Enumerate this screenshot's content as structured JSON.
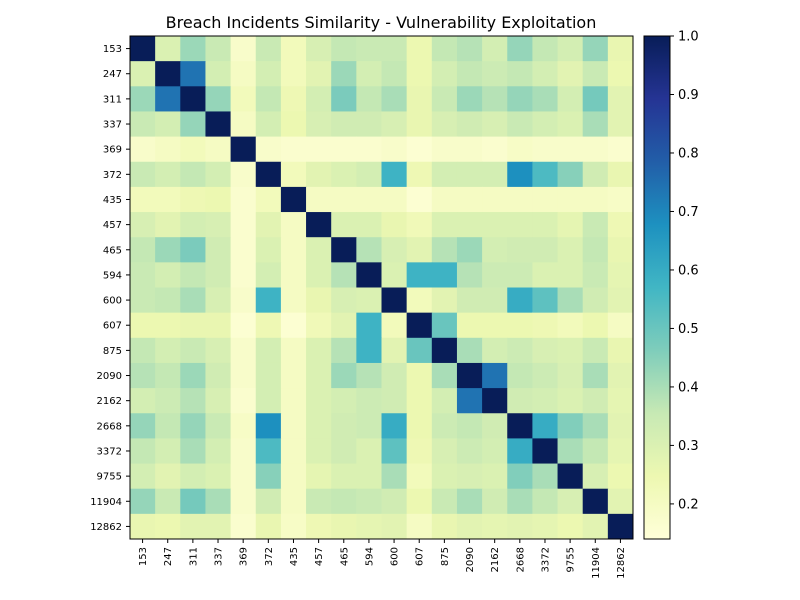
{
  "chart_data": {
    "type": "heatmap",
    "title": "Breach Incidents Similarity - Vulnerability Exploitation",
    "xlabel": "",
    "ylabel": "",
    "labels": [
      "153",
      "247",
      "311",
      "337",
      "369",
      "372",
      "435",
      "457",
      "465",
      "594",
      "600",
      "607",
      "875",
      "2090",
      "2162",
      "2668",
      "3372",
      "9755",
      "11904",
      "12862"
    ],
    "matrix": [
      [
        1.0,
        0.3,
        0.42,
        0.35,
        0.18,
        0.35,
        0.22,
        0.31,
        0.36,
        0.35,
        0.35,
        0.25,
        0.36,
        0.38,
        0.32,
        0.43,
        0.36,
        0.32,
        0.43,
        0.26
      ],
      [
        0.3,
        1.0,
        0.74,
        0.32,
        0.2,
        0.32,
        0.22,
        0.28,
        0.42,
        0.32,
        0.36,
        0.25,
        0.32,
        0.36,
        0.34,
        0.36,
        0.32,
        0.28,
        0.35,
        0.25
      ],
      [
        0.42,
        0.74,
        1.0,
        0.43,
        0.22,
        0.36,
        0.24,
        0.32,
        0.47,
        0.36,
        0.4,
        0.26,
        0.35,
        0.42,
        0.38,
        0.43,
        0.4,
        0.32,
        0.48,
        0.28
      ],
      [
        0.35,
        0.32,
        0.43,
        1.0,
        0.2,
        0.32,
        0.25,
        0.31,
        0.33,
        0.33,
        0.31,
        0.26,
        0.31,
        0.33,
        0.31,
        0.35,
        0.32,
        0.3,
        0.4,
        0.28
      ],
      [
        0.18,
        0.2,
        0.22,
        0.2,
        1.0,
        0.18,
        0.17,
        0.17,
        0.17,
        0.17,
        0.18,
        0.16,
        0.18,
        0.18,
        0.17,
        0.19,
        0.18,
        0.18,
        0.18,
        0.17
      ],
      [
        0.35,
        0.32,
        0.36,
        0.32,
        0.18,
        1.0,
        0.22,
        0.28,
        0.3,
        0.32,
        0.58,
        0.24,
        0.32,
        0.32,
        0.32,
        0.68,
        0.55,
        0.45,
        0.33,
        0.26
      ],
      [
        0.22,
        0.22,
        0.24,
        0.25,
        0.17,
        0.22,
        1.0,
        0.2,
        0.2,
        0.2,
        0.2,
        0.16,
        0.2,
        0.2,
        0.2,
        0.2,
        0.2,
        0.2,
        0.2,
        0.19
      ],
      [
        0.31,
        0.28,
        0.32,
        0.31,
        0.17,
        0.28,
        0.2,
        1.0,
        0.3,
        0.3,
        0.26,
        0.23,
        0.3,
        0.3,
        0.3,
        0.3,
        0.3,
        0.27,
        0.35,
        0.24
      ],
      [
        0.36,
        0.42,
        0.47,
        0.33,
        0.17,
        0.3,
        0.2,
        0.3,
        1.0,
        0.38,
        0.31,
        0.28,
        0.38,
        0.42,
        0.32,
        0.33,
        0.33,
        0.3,
        0.36,
        0.26
      ],
      [
        0.35,
        0.32,
        0.36,
        0.33,
        0.17,
        0.32,
        0.2,
        0.3,
        0.38,
        1.0,
        0.3,
        0.58,
        0.58,
        0.38,
        0.34,
        0.34,
        0.3,
        0.3,
        0.35,
        0.27
      ],
      [
        0.35,
        0.36,
        0.4,
        0.31,
        0.18,
        0.58,
        0.2,
        0.26,
        0.31,
        0.3,
        1.0,
        0.22,
        0.28,
        0.33,
        0.33,
        0.6,
        0.52,
        0.4,
        0.33,
        0.28
      ],
      [
        0.25,
        0.25,
        0.26,
        0.26,
        0.16,
        0.24,
        0.16,
        0.23,
        0.28,
        0.58,
        0.22,
        1.0,
        0.5,
        0.25,
        0.25,
        0.25,
        0.24,
        0.22,
        0.25,
        0.2
      ],
      [
        0.36,
        0.32,
        0.35,
        0.31,
        0.18,
        0.32,
        0.2,
        0.3,
        0.38,
        0.58,
        0.28,
        0.5,
        1.0,
        0.4,
        0.32,
        0.34,
        0.31,
        0.3,
        0.35,
        0.26
      ],
      [
        0.38,
        0.36,
        0.42,
        0.33,
        0.18,
        0.32,
        0.2,
        0.3,
        0.42,
        0.38,
        0.33,
        0.25,
        0.4,
        1.0,
        0.74,
        0.36,
        0.34,
        0.31,
        0.4,
        0.28
      ],
      [
        0.32,
        0.34,
        0.38,
        0.31,
        0.17,
        0.32,
        0.2,
        0.3,
        0.32,
        0.34,
        0.33,
        0.25,
        0.32,
        0.74,
        1.0,
        0.33,
        0.32,
        0.3,
        0.33,
        0.27
      ],
      [
        0.43,
        0.36,
        0.43,
        0.35,
        0.19,
        0.68,
        0.2,
        0.3,
        0.33,
        0.34,
        0.6,
        0.25,
        0.34,
        0.36,
        0.33,
        1.0,
        0.6,
        0.46,
        0.4,
        0.28
      ],
      [
        0.36,
        0.32,
        0.4,
        0.32,
        0.18,
        0.55,
        0.2,
        0.3,
        0.33,
        0.3,
        0.52,
        0.24,
        0.31,
        0.34,
        0.32,
        0.6,
        1.0,
        0.4,
        0.36,
        0.27
      ],
      [
        0.32,
        0.28,
        0.32,
        0.3,
        0.18,
        0.45,
        0.2,
        0.27,
        0.3,
        0.3,
        0.4,
        0.22,
        0.3,
        0.31,
        0.3,
        0.46,
        0.4,
        1.0,
        0.31,
        0.25
      ],
      [
        0.43,
        0.35,
        0.48,
        0.4,
        0.18,
        0.33,
        0.2,
        0.35,
        0.36,
        0.35,
        0.33,
        0.25,
        0.35,
        0.4,
        0.33,
        0.4,
        0.36,
        0.31,
        1.0,
        0.28
      ],
      [
        0.26,
        0.25,
        0.28,
        0.28,
        0.17,
        0.26,
        0.19,
        0.24,
        0.26,
        0.27,
        0.28,
        0.2,
        0.26,
        0.28,
        0.27,
        0.28,
        0.27,
        0.25,
        0.28,
        1.0
      ]
    ],
    "colormap": "YlGnBu",
    "colorbar": {
      "min": 0.14,
      "max": 1.0,
      "ticks": [
        "0.2",
        "0.3",
        "0.4",
        "0.5",
        "0.6",
        "0.7",
        "0.8",
        "0.9",
        "1.0"
      ]
    },
    "grid": false
  }
}
